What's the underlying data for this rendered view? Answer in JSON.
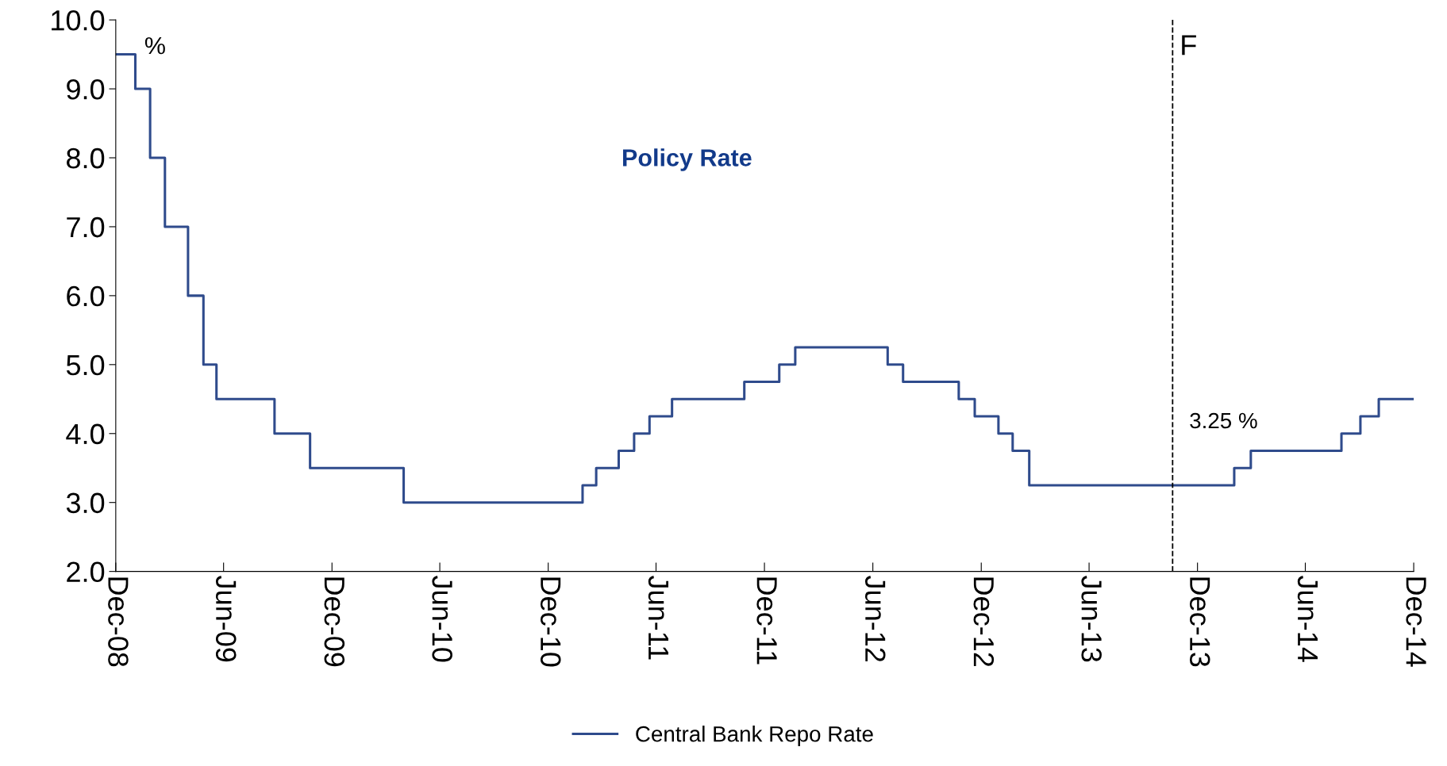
{
  "chart_data": {
    "type": "step",
    "title": "Policy Rate",
    "ylabel": "%",
    "x": [
      "2008-12-01",
      "2009-01-03",
      "2009-01-28",
      "2009-02-22",
      "2009-04-02",
      "2009-04-28",
      "2009-05-20",
      "2009-08-26",
      "2009-10-25",
      "2010-04-01",
      "2011-01-28",
      "2011-02-20",
      "2011-03-30",
      "2011-04-25",
      "2011-05-21",
      "2011-06-28",
      "2011-10-28",
      "2011-12-26",
      "2012-01-22",
      "2012-06-26",
      "2012-07-22",
      "2012-10-24",
      "2012-11-20",
      "2012-12-30",
      "2013-01-23",
      "2013-02-20",
      "2014-02-01",
      "2014-03-01",
      "2014-08-01",
      "2014-09-02",
      "2014-10-03",
      "2014-12-01"
    ],
    "series": [
      {
        "name": "Central Bank Repo Rate",
        "color": "#2f4b8c",
        "values": [
          9.5,
          9.0,
          8.0,
          7.0,
          6.0,
          5.0,
          4.5,
          4.0,
          3.5,
          3.0,
          3.25,
          3.5,
          3.75,
          4.0,
          4.25,
          4.5,
          4.75,
          5.0,
          5.25,
          5.0,
          4.75,
          4.5,
          4.25,
          4.0,
          3.75,
          3.25,
          3.5,
          3.75,
          4.0,
          4.25,
          4.5,
          4.5
        ]
      }
    ],
    "xlim": [
      "2008-12-01",
      "2014-12-01"
    ],
    "xticks": [
      {
        "value": "2008-12-01",
        "label": "Dec-08"
      },
      {
        "value": "2009-06-01",
        "label": "Jun-09"
      },
      {
        "value": "2009-12-01",
        "label": "Dec-09"
      },
      {
        "value": "2010-06-01",
        "label": "Jun-10"
      },
      {
        "value": "2010-12-01",
        "label": "Dec-10"
      },
      {
        "value": "2011-06-01",
        "label": "Jun-11"
      },
      {
        "value": "2011-12-01",
        "label": "Dec-11"
      },
      {
        "value": "2012-06-01",
        "label": "Jun-12"
      },
      {
        "value": "2012-12-01",
        "label": "Dec-12"
      },
      {
        "value": "2013-06-01",
        "label": "Jun-13"
      },
      {
        "value": "2013-12-01",
        "label": "Dec-13"
      },
      {
        "value": "2014-06-01",
        "label": "Jun-14"
      },
      {
        "value": "2014-12-01",
        "label": "Dec-14"
      }
    ],
    "ylim": [
      2.0,
      10.0
    ],
    "yticks": [
      {
        "value": 2.0,
        "label": "2.0"
      },
      {
        "value": 3.0,
        "label": "3.0"
      },
      {
        "value": 4.0,
        "label": "4.0"
      },
      {
        "value": 5.0,
        "label": "5.0"
      },
      {
        "value": 6.0,
        "label": "6.0"
      },
      {
        "value": 7.0,
        "label": "7.0"
      },
      {
        "value": 8.0,
        "label": "8.0"
      },
      {
        "value": 9.0,
        "label": "9.0"
      },
      {
        "value": 10.0,
        "label": "10.0"
      }
    ],
    "ref_lines": [
      {
        "axis": "x",
        "value": "2013-10-20",
        "label": "F",
        "color": "#000000",
        "line_style": "dashed"
      }
    ],
    "annotations": [
      "3.25 %"
    ],
    "grid": false,
    "legend": "bottom",
    "marker": "none",
    "line_style": "solid"
  }
}
